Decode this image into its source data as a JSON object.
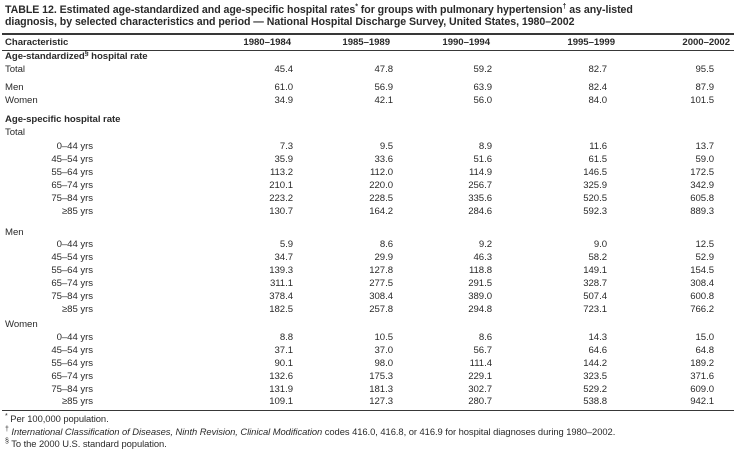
{
  "title": {
    "lines": [
      {
        "segments": [
          {
            "text": "TABLE 12. Estimated age-standardized and age-specific hospital rates"
          },
          {
            "text": "*",
            "sup": true
          },
          {
            "text": " for groups with pulmonary hypertension"
          },
          {
            "text": "†",
            "sup": true
          },
          {
            "text": " as any-listed"
          }
        ]
      },
      {
        "segments": [
          {
            "text": "diagnosis, by selected characteristics and period — National Hospital Discharge Survey, United States, 1980–2002"
          }
        ]
      }
    ]
  },
  "columns": {
    "characteristic": "Characteristic",
    "periods": [
      "1980–1984",
      "1985–1989",
      "1990–1994",
      "1995–1999",
      "2000–2002"
    ]
  },
  "rows": [
    {
      "kind": "section",
      "segments": [
        {
          "text": "Age-standardized"
        },
        {
          "text": "§",
          "sup": true
        },
        {
          "text": " hospital rate"
        }
      ]
    },
    {
      "kind": "data",
      "label": "Total",
      "indent": 0,
      "values": [
        "45.4",
        "47.8",
        "59.2",
        "82.7",
        "95.5"
      ]
    },
    {
      "kind": "data",
      "label": "Men",
      "indent": 0,
      "gap": 5,
      "values": [
        "61.0",
        "56.9",
        "63.9",
        "82.4",
        "87.9"
      ]
    },
    {
      "kind": "data",
      "label": "Women",
      "indent": 0,
      "values": [
        "34.9",
        "42.1",
        "56.0",
        "84.0",
        "101.5"
      ]
    },
    {
      "kind": "section",
      "gap": 6,
      "segments": [
        {
          "text": "Age-specific hospital rate"
        }
      ]
    },
    {
      "kind": "data",
      "label": "Total",
      "indent": 0,
      "values": []
    },
    {
      "kind": "data",
      "label": "0–44 yrs",
      "indent": 1,
      "gap": 2,
      "values": [
        "7.3",
        "9.5",
        "8.9",
        "11.6",
        "13.7"
      ]
    },
    {
      "kind": "data",
      "label": "45–54 yrs",
      "indent": 1,
      "values": [
        "35.9",
        "33.6",
        "51.6",
        "61.5",
        "59.0"
      ]
    },
    {
      "kind": "data",
      "label": "55–64 yrs",
      "indent": 1,
      "values": [
        "113.2",
        "112.0",
        "114.9",
        "146.5",
        "172.5"
      ]
    },
    {
      "kind": "data",
      "label": "65–74 yrs",
      "indent": 1,
      "values": [
        "210.1",
        "220.0",
        "256.7",
        "325.9",
        "342.9"
      ]
    },
    {
      "kind": "data",
      "label": "75–84 yrs",
      "indent": 1,
      "values": [
        "223.2",
        "228.5",
        "335.6",
        "520.5",
        "605.8"
      ]
    },
    {
      "kind": "data",
      "label": "≥85 yrs",
      "indent": 1,
      "values": [
        "130.7",
        "164.2",
        "284.6",
        "592.3",
        "889.3"
      ]
    },
    {
      "kind": "data",
      "label": "Men",
      "indent": 0,
      "gap": 8,
      "values": []
    },
    {
      "kind": "data",
      "label": "0–44 yrs",
      "indent": 1,
      "values": [
        "5.9",
        "8.6",
        "9.2",
        "9.0",
        "12.5"
      ]
    },
    {
      "kind": "data",
      "label": "45–54 yrs",
      "indent": 1,
      "values": [
        "34.7",
        "29.9",
        "46.3",
        "58.2",
        "52.9"
      ]
    },
    {
      "kind": "data",
      "label": "55–64 yrs",
      "indent": 1,
      "values": [
        "139.3",
        "127.8",
        "118.8",
        "149.1",
        "154.5"
      ]
    },
    {
      "kind": "data",
      "label": "65–74 yrs",
      "indent": 1,
      "values": [
        "311.1",
        "277.5",
        "291.5",
        "328.7",
        "308.4"
      ]
    },
    {
      "kind": "data",
      "label": "75–84 yrs",
      "indent": 1,
      "values": [
        "378.4",
        "308.4",
        "389.0",
        "507.4",
        "600.8"
      ]
    },
    {
      "kind": "data",
      "label": "≥85 yrs",
      "indent": 1,
      "values": [
        "182.5",
        "257.8",
        "294.8",
        "723.1",
        "766.2"
      ]
    },
    {
      "kind": "data",
      "label": "Women",
      "indent": 0,
      "gap": 3,
      "values": []
    },
    {
      "kind": "data",
      "label": "0–44 yrs",
      "indent": 1,
      "values": [
        "8.8",
        "10.5",
        "8.6",
        "14.3",
        "15.0"
      ]
    },
    {
      "kind": "data",
      "label": "45–54 yrs",
      "indent": 1,
      "values": [
        "37.1",
        "37.0",
        "56.7",
        "64.6",
        "64.8"
      ]
    },
    {
      "kind": "data",
      "label": "55–64 yrs",
      "indent": 1,
      "values": [
        "90.1",
        "98.0",
        "111.4",
        "144.2",
        "189.2"
      ]
    },
    {
      "kind": "data",
      "label": "65–74 yrs",
      "indent": 1,
      "values": [
        "132.6",
        "175.3",
        "229.1",
        "323.5",
        "371.6"
      ]
    },
    {
      "kind": "data",
      "label": "75–84 yrs",
      "indent": 1,
      "values": [
        "131.9",
        "181.3",
        "302.7",
        "529.2",
        "609.0"
      ]
    },
    {
      "kind": "data",
      "label": "≥85 yrs",
      "indent": 1,
      "values": [
        "109.1",
        "127.3",
        "280.7",
        "538.8",
        "942.1"
      ]
    }
  ],
  "footnotes": [
    {
      "marker": "*",
      "segments": [
        {
          "text": " Per 100,000 population."
        }
      ]
    },
    {
      "marker": "†",
      "segments": [
        {
          "text": " International Classification of Diseases, Ninth Revision, Clinical Modification",
          "italic": true
        },
        {
          "text": " codes 416.0, 416.8, or 416.9 for hospital diagnoses during 1980–2002."
        }
      ]
    },
    {
      "marker": "§",
      "segments": [
        {
          "text": " To the 2000 U.S. standard population."
        }
      ]
    }
  ]
}
